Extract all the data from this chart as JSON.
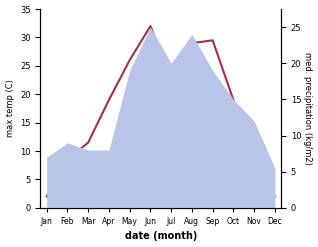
{
  "months": [
    "Jan",
    "Feb",
    "Mar",
    "Apr",
    "May",
    "Jun",
    "Jul",
    "Aug",
    "Sep",
    "Oct",
    "Nov",
    "Dec"
  ],
  "temp": [
    2,
    8.5,
    11.5,
    19,
    26,
    32,
    23,
    29,
    29.5,
    19,
    6.5,
    2
  ],
  "precip": [
    7,
    9,
    8,
    8,
    19,
    25,
    20,
    24,
    19,
    15,
    12,
    5.5
  ],
  "temp_color": "#a03050",
  "precip_fill_color": "#b8c4e8",
  "temp_ylim": [
    0,
    35
  ],
  "precip_ylim": [
    0,
    27.5
  ],
  "temp_yticks": [
    0,
    5,
    10,
    15,
    20,
    25,
    30,
    35
  ],
  "precip_yticks": [
    0,
    5,
    10,
    15,
    20,
    25
  ],
  "xlabel": "date (month)",
  "ylabel_left": "max temp (C)",
  "ylabel_right": "med. precipitation (kg/m2)",
  "bg_color": "#ffffff"
}
